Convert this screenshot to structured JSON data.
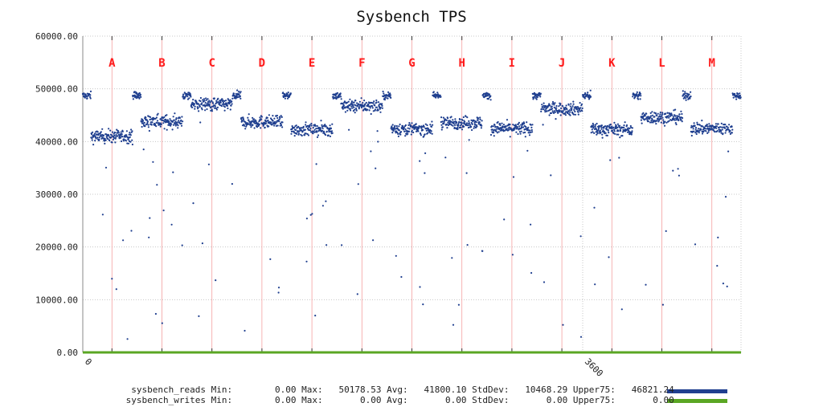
{
  "chart_data": {
    "type": "scatter",
    "title": "Sysbench TPS",
    "xlabel": "",
    "ylabel": "",
    "xlim": [
      0,
      4740
    ],
    "ylim": [
      0,
      60000
    ],
    "x_ticks": [
      "0",
      "3600"
    ],
    "y_ticks": [
      "0.00",
      "10000.00",
      "20000.00",
      "30000.00",
      "40000.00",
      "50000.00",
      "60000.00"
    ],
    "grid": true,
    "legend_placement": "bottom",
    "phase_markers": [
      {
        "label": "A",
        "x": 210
      },
      {
        "label": "B",
        "x": 570
      },
      {
        "label": "C",
        "x": 930
      },
      {
        "label": "D",
        "x": 1290
      },
      {
        "label": "E",
        "x": 1650
      },
      {
        "label": "F",
        "x": 2010
      },
      {
        "label": "G",
        "x": 2370
      },
      {
        "label": "H",
        "x": 2730
      },
      {
        "label": "I",
        "x": 3090
      },
      {
        "label": "J",
        "x": 3450
      },
      {
        "label": "K",
        "x": 3810
      },
      {
        "label": "L",
        "x": 4170
      },
      {
        "label": "M",
        "x": 4530
      }
    ],
    "series": [
      {
        "name": "sysbench_reads",
        "color": "#1f3f8f",
        "segments": [
          {
            "start": 0,
            "end": 60,
            "level": 48700
          },
          {
            "start": 60,
            "end": 360,
            "level": 41000
          },
          {
            "start": 360,
            "end": 420,
            "level": 48700
          },
          {
            "start": 420,
            "end": 720,
            "level": 43800
          },
          {
            "start": 720,
            "end": 780,
            "level": 48700
          },
          {
            "start": 780,
            "end": 1080,
            "level": 47100
          },
          {
            "start": 1080,
            "end": 1140,
            "level": 48700
          },
          {
            "start": 1140,
            "end": 1440,
            "level": 43700
          },
          {
            "start": 1440,
            "end": 1500,
            "level": 48700
          },
          {
            "start": 1500,
            "end": 1800,
            "level": 42300
          },
          {
            "start": 1800,
            "end": 1860,
            "level": 48700
          },
          {
            "start": 1860,
            "end": 2160,
            "level": 46700
          },
          {
            "start": 2160,
            "end": 2220,
            "level": 48700
          },
          {
            "start": 2220,
            "end": 2520,
            "level": 42400
          },
          {
            "start": 2520,
            "end": 2580,
            "level": 48700
          },
          {
            "start": 2580,
            "end": 2880,
            "level": 43600
          },
          {
            "start": 2880,
            "end": 2940,
            "level": 48700
          },
          {
            "start": 2940,
            "end": 3240,
            "level": 42500
          },
          {
            "start": 3240,
            "end": 3300,
            "level": 48700
          },
          {
            "start": 3300,
            "end": 3600,
            "level": 46200
          },
          {
            "start": 3600,
            "end": 3660,
            "level": 48700
          },
          {
            "start": 3660,
            "end": 3960,
            "level": 42300
          },
          {
            "start": 3960,
            "end": 4020,
            "level": 48700
          },
          {
            "start": 4020,
            "end": 4320,
            "level": 44600
          },
          {
            "start": 4320,
            "end": 4380,
            "level": 48700
          },
          {
            "start": 4380,
            "end": 4680,
            "level": 42500
          },
          {
            "start": 4680,
            "end": 4740,
            "level": 48700
          }
        ],
        "stats": {
          "min": "0.00",
          "max": "50178.53",
          "avg": "41800.10",
          "stddev": "10468.29",
          "upper75": "46821.24"
        }
      },
      {
        "name": "sysbench_writes",
        "color": "#5aa623",
        "value": 0,
        "stats": {
          "min": "0.00",
          "max": "0.00",
          "avg": "0.00",
          "stddev": "0.00",
          "upper75": "0.00"
        }
      }
    ]
  },
  "legend_labels": {
    "min": "Min:",
    "max": "Max:",
    "avg": "Avg:",
    "stddev": "StdDev:",
    "upper75": "Upper75:"
  }
}
